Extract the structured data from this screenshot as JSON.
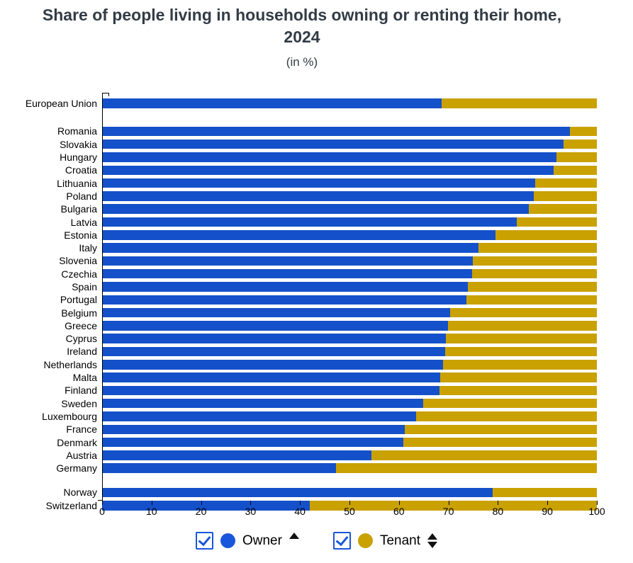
{
  "header": {
    "title": "Share of people living in households owning or renting their home, 2024",
    "subtitle": "(in %)"
  },
  "colors": {
    "owner_bar": "#1450C9",
    "tenant_bar": "#C9A100",
    "checkbox_accent": "#1A56DB",
    "axis": "#000000"
  },
  "legend": {
    "items": [
      {
        "id": "owner",
        "label": "Owner",
        "checked": true,
        "marker_color": "#1A56DB",
        "sort_indicator": "ascending"
      },
      {
        "id": "tenant",
        "label": "Tenant",
        "checked": true,
        "marker_color": "#C9A100",
        "sort_indicator": "both"
      }
    ]
  },
  "chart_data": {
    "type": "bar",
    "orientation": "horizontal",
    "stacked": true,
    "title": "Share of people living in households owning or renting their home, 2024",
    "subtitle": "(in %)",
    "xlabel": "",
    "ylabel": "",
    "xlim": [
      0,
      100
    ],
    "x_ticks": [
      0,
      10,
      20,
      30,
      40,
      50,
      60,
      70,
      80,
      90,
      100
    ],
    "grid": false,
    "legend_position": "bottom",
    "categories": [
      "European Union",
      "Romania",
      "Slovakia",
      "Hungary",
      "Croatia",
      "Lithuania",
      "Poland",
      "Bulgaria",
      "Latvia",
      "Estonia",
      "Italy",
      "Slovenia",
      "Czechia",
      "Spain",
      "Portugal",
      "Belgium",
      "Greece",
      "Cyprus",
      "Ireland",
      "Netherlands",
      "Malta",
      "Finland",
      "Sweden",
      "Luxembourg",
      "France",
      "Denmark",
      "Austria",
      "Germany",
      "Norway",
      "Switzerland"
    ],
    "series": [
      {
        "name": "Owner",
        "color": "#1450C9",
        "values": [
          68.6,
          94.5,
          93.2,
          91.8,
          91.2,
          87.5,
          87.2,
          86.2,
          83.8,
          79.5,
          76.0,
          74.9,
          74.8,
          73.9,
          73.7,
          70.4,
          69.9,
          69.5,
          69.4,
          68.9,
          68.4,
          68.2,
          64.9,
          63.5,
          61.1,
          60.9,
          54.5,
          47.2,
          78.9,
          42.0
        ]
      },
      {
        "name": "Tenant",
        "color": "#C9A100",
        "values": [
          31.4,
          5.5,
          6.8,
          8.2,
          8.8,
          12.5,
          12.8,
          13.8,
          16.2,
          20.5,
          24.0,
          25.1,
          25.2,
          26.1,
          26.3,
          29.6,
          30.1,
          30.5,
          30.6,
          31.1,
          31.6,
          31.8,
          35.1,
          36.5,
          38.9,
          39.1,
          45.5,
          52.8,
          21.1,
          58.0
        ]
      }
    ],
    "group_separators_after": [
      "European Union",
      "Germany"
    ]
  }
}
